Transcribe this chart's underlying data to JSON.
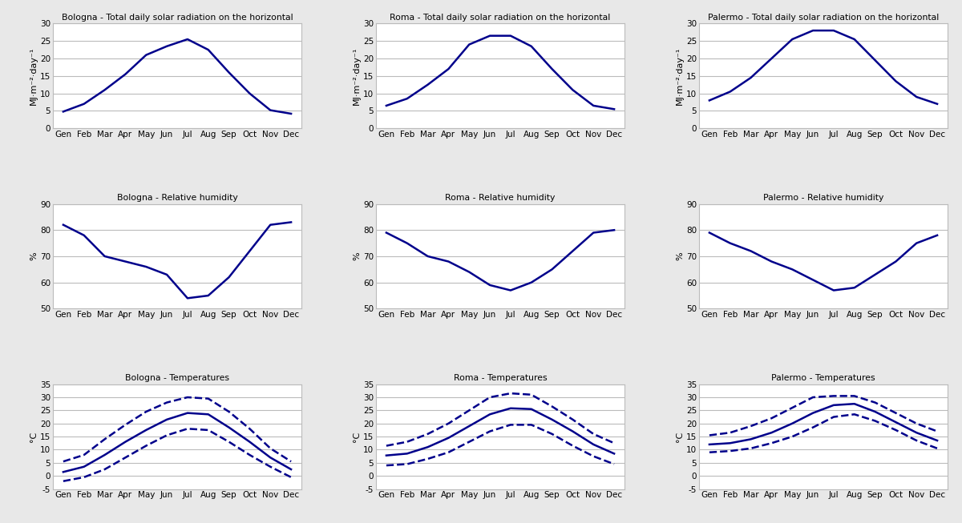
{
  "months": [
    "Gen",
    "Feb",
    "Mar",
    "Apr",
    "May",
    "Jun",
    "Jul",
    "Aug",
    "Sep",
    "Oct",
    "Nov",
    "Dec"
  ],
  "solar": {
    "bologna": [
      4.8,
      7.0,
      11.0,
      15.5,
      21.0,
      23.5,
      25.5,
      22.5,
      16.0,
      10.0,
      5.2,
      4.2
    ],
    "roma": [
      6.5,
      8.5,
      12.5,
      17.0,
      24.0,
      26.5,
      26.5,
      23.5,
      17.0,
      11.0,
      6.5,
      5.5
    ],
    "palermo": [
      8.0,
      10.5,
      14.5,
      20.0,
      25.5,
      28.0,
      28.0,
      25.5,
      19.5,
      13.5,
      9.0,
      7.0
    ]
  },
  "solar_ylim": [
    0,
    30
  ],
  "solar_yticks": [
    0,
    5,
    10,
    15,
    20,
    25,
    30
  ],
  "solar_ylabel": "MJ·m⁻²·day⁻¹",
  "humidity": {
    "bologna": [
      82,
      78,
      70,
      68,
      66,
      63,
      54,
      55,
      62,
      72,
      82,
      83
    ],
    "roma": [
      79,
      75,
      70,
      68,
      64,
      59,
      57,
      60,
      65,
      72,
      79,
      80
    ],
    "palermo": [
      79,
      75,
      72,
      68,
      65,
      61,
      57,
      58,
      63,
      68,
      75,
      78
    ]
  },
  "humidity_ylim": [
    50,
    90
  ],
  "humidity_yticks": [
    50,
    60,
    70,
    80,
    90
  ],
  "humidity_ylabel": "%",
  "temp": {
    "bologna_mean": [
      1.5,
      3.5,
      8.0,
      13.0,
      17.5,
      21.5,
      24.0,
      23.5,
      18.5,
      13.0,
      7.0,
      2.5
    ],
    "bologna_max": [
      5.5,
      8.0,
      14.0,
      19.5,
      24.5,
      28.0,
      30.0,
      29.5,
      24.5,
      18.0,
      10.5,
      5.5
    ],
    "bologna_min": [
      -2.0,
      -0.5,
      2.5,
      7.0,
      11.5,
      15.5,
      18.0,
      17.5,
      13.0,
      8.0,
      3.5,
      -0.5
    ],
    "roma_mean": [
      7.8,
      8.5,
      11.0,
      14.5,
      19.0,
      23.5,
      25.8,
      25.5,
      21.5,
      17.0,
      12.0,
      8.5
    ],
    "roma_max": [
      11.5,
      13.0,
      16.0,
      20.0,
      25.0,
      30.0,
      31.5,
      31.0,
      26.5,
      21.5,
      16.0,
      12.5
    ],
    "roma_min": [
      4.0,
      4.5,
      6.5,
      9.0,
      13.0,
      17.0,
      19.5,
      19.5,
      16.0,
      11.5,
      7.5,
      4.5
    ],
    "palermo_mean": [
      12.0,
      12.5,
      14.0,
      16.5,
      20.0,
      24.0,
      27.0,
      27.5,
      24.5,
      20.5,
      16.5,
      13.5
    ],
    "palermo_max": [
      15.5,
      16.5,
      19.0,
      22.0,
      26.0,
      30.0,
      30.5,
      30.5,
      28.0,
      24.0,
      20.0,
      17.0
    ],
    "palermo_min": [
      9.0,
      9.5,
      10.5,
      12.5,
      15.0,
      18.5,
      22.5,
      23.5,
      21.0,
      17.5,
      13.5,
      10.5
    ]
  },
  "temp_ylim": [
    -5,
    35
  ],
  "temp_yticks": [
    -5,
    0,
    5,
    10,
    15,
    20,
    25,
    30,
    35
  ],
  "temp_ylabel": "°C",
  "titles": {
    "solar": [
      "Bologna - Total daily solar radiation on the horizontal",
      "Roma - Total daily solar radiation on the horizontal",
      "Palermo - Total daily solar radiation on the horizontal"
    ],
    "humidity": [
      "Bologna - Relative humidity",
      "Roma - Relative humidity",
      "Palermo - Relative humidity"
    ],
    "temp": [
      "Bologna - Temperatures",
      "Roma - Temperatures",
      "Palermo - Temperatures"
    ]
  },
  "line_color": "#00008B",
  "line_width": 1.8,
  "grid_color": "#bbbbbb",
  "fig_bg_color": "#e8e8e8",
  "plot_bg_color": "#ffffff"
}
